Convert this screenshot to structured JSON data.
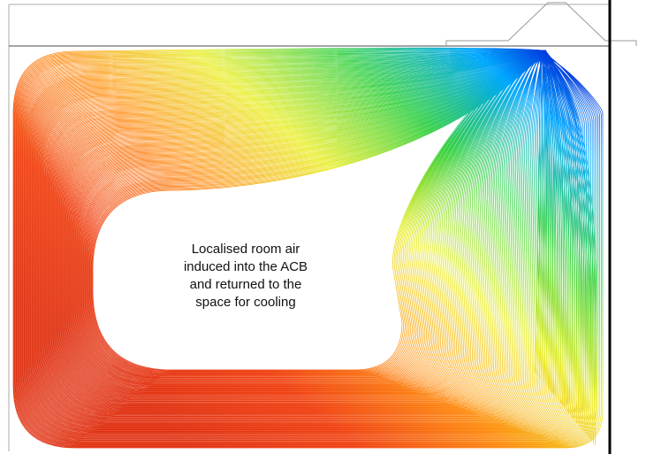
{
  "annotation": {
    "lines": [
      "Localised room air",
      "induced into the ACB",
      "and returned to the",
      "space for cooling"
    ]
  }
}
